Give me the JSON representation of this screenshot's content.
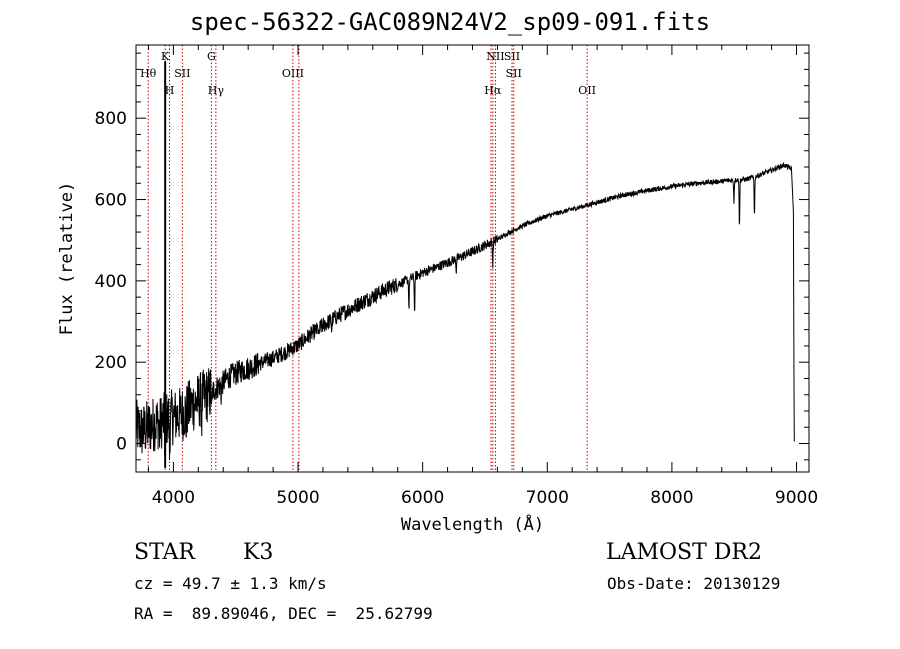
{
  "chart_data": {
    "type": "line",
    "title": "spec-56322-GAC089N24V2_sp09-091.fits",
    "xlabel": "Wavelength (Å)",
    "ylabel": "Flux (relative)",
    "xlim": [
      3700,
      9100
    ],
    "ylim": [
      -70,
      980
    ],
    "xticks": [
      4000,
      5000,
      6000,
      7000,
      8000,
      9000
    ],
    "yticks": [
      0,
      200,
      400,
      600,
      800
    ],
    "grid": false,
    "line_color": "#000000",
    "marker_color": "#cc0000",
    "spectrum": {
      "x": [
        3700,
        3750,
        3800,
        3850,
        3900,
        3950,
        4000,
        4050,
        4100,
        4150,
        4200,
        4250,
        4300,
        4350,
        4400,
        4450,
        4500,
        4550,
        4600,
        4700,
        4800,
        4900,
        5000,
        5100,
        5200,
        5300,
        5400,
        5500,
        5600,
        5700,
        5800,
        5900,
        6000,
        6100,
        6200,
        6300,
        6400,
        6500,
        6600,
        6700,
        6800,
        6900,
        7000,
        7200,
        7400,
        7600,
        7800,
        8000,
        8200,
        8400,
        8500,
        8600,
        8700,
        8800,
        8900,
        8960
      ],
      "y": [
        40,
        30,
        40,
        50,
        55,
        60,
        65,
        70,
        80,
        95,
        105,
        115,
        125,
        138,
        150,
        165,
        172,
        180,
        185,
        198,
        210,
        225,
        242,
        268,
        290,
        310,
        328,
        345,
        362,
        378,
        392,
        405,
        420,
        432,
        445,
        458,
        472,
        488,
        502,
        520,
        535,
        548,
        560,
        576,
        593,
        610,
        622,
        632,
        640,
        645,
        648,
        650,
        660,
        672,
        685,
        675
      ]
    },
    "features": [
      {
        "x": 3890,
        "y": 15,
        "depth": 35
      },
      {
        "x": 3934,
        "y": 40,
        "depth": 120
      },
      {
        "x": 3969,
        "y": 45,
        "depth": 90
      },
      {
        "x": 4101,
        "y": 75,
        "depth": 40
      },
      {
        "x": 4227,
        "y": 110,
        "depth": 50
      },
      {
        "x": 4308,
        "y": 120,
        "depth": 45
      },
      {
        "x": 4383,
        "y": 145,
        "depth": 30
      },
      {
        "x": 5167,
        "y": 275,
        "depth": 25
      },
      {
        "x": 5270,
        "y": 300,
        "depth": 25
      },
      {
        "x": 5890,
        "y": 400,
        "depth": 75
      },
      {
        "x": 5935,
        "y": 405,
        "depth": 90
      },
      {
        "x": 6270,
        "y": 460,
        "depth": 30
      },
      {
        "x": 6563,
        "y": 496,
        "depth": 60
      },
      {
        "x": 8498,
        "y": 646,
        "depth": 55
      },
      {
        "x": 8542,
        "y": 647,
        "depth": 120
      },
      {
        "x": 8662,
        "y": 652,
        "depth": 100
      }
    ],
    "lines": [
      {
        "x": 3798,
        "labels": [
          "Hθ"
        ],
        "rows": [
          1
        ]
      },
      {
        "x": 3934,
        "labels": [
          "K"
        ],
        "rows": [
          0
        ]
      },
      {
        "x": 3969,
        "labels": [
          "H"
        ],
        "rows": [
          2
        ]
      },
      {
        "x": 4072,
        "labels": [
          "SII"
        ],
        "rows": [
          1
        ]
      },
      {
        "x": 4305,
        "labels": [
          "G"
        ],
        "rows": [
          0
        ]
      },
      {
        "x": 4341,
        "labels": [
          "Hγ"
        ],
        "rows": [
          2
        ]
      },
      {
        "x": 4959,
        "labels": [
          "OIII"
        ],
        "rows": [
          1
        ]
      },
      {
        "x": 5007,
        "labels": [],
        "rows": []
      },
      {
        "x": 6548,
        "labels": [],
        "rows": []
      },
      {
        "x": 6563,
        "labels": [
          "Hα"
        ],
        "rows": [
          2
        ]
      },
      {
        "x": 6584,
        "labels": [
          "NII"
        ],
        "rows": [
          0
        ]
      },
      {
        "x": 6717,
        "labels": [
          "SII"
        ],
        "rows": [
          0
        ]
      },
      {
        "x": 6731,
        "labels": [
          "SII"
        ],
        "rows": [
          1
        ]
      },
      {
        "x": 7320,
        "labels": [
          "OII"
        ],
        "rows": [
          2
        ]
      }
    ]
  },
  "footer": {
    "class_label": "STAR",
    "subclass_label": "K3",
    "survey": "LAMOST DR2",
    "redshift": "cz = 49.7 ± 1.3 km/s",
    "obs_date": "Obs-Date: 20130129",
    "coords": "RA =  89.89046, DEC =  25.62799"
  }
}
